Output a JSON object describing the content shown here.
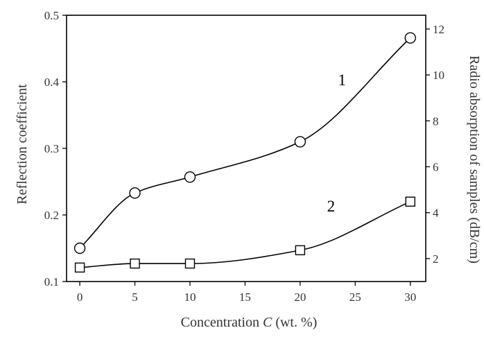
{
  "chart_data": {
    "type": "line",
    "x": [
      0,
      5,
      10,
      20,
      30
    ],
    "xlabel_main": "Concentration",
    "xlabel_var": "C",
    "xlabel_unit": "(wt. %)",
    "ylabel": "Reflection coefficient",
    "y2label": "Radio absorption of samples (dB/cm)",
    "xlim": [
      -1.2,
      31.4
    ],
    "ylim": [
      0.1,
      0.5
    ],
    "y2lim": [
      1.0,
      12.6
    ],
    "xticks": [
      0,
      5,
      10,
      15,
      20,
      25,
      30
    ],
    "yticks": [
      0.1,
      0.2,
      0.3,
      0.4,
      0.5
    ],
    "y2ticks": [
      2,
      4,
      6,
      8,
      10,
      12
    ],
    "grid": false,
    "series": [
      {
        "axis": "left",
        "marker": "circle",
        "values": [
          0.15,
          0.233,
          0.257,
          0.31,
          0.466
        ]
      },
      {
        "axis": "left",
        "marker": "square",
        "values": [
          0.121,
          0.127,
          0.127,
          0.147,
          0.22
        ]
      }
    ],
    "annotations": [
      {
        "text": "1",
        "x": 23.8,
        "y": 0.395
      },
      {
        "text": "2",
        "x": 22.8,
        "y": 0.205
      }
    ]
  }
}
